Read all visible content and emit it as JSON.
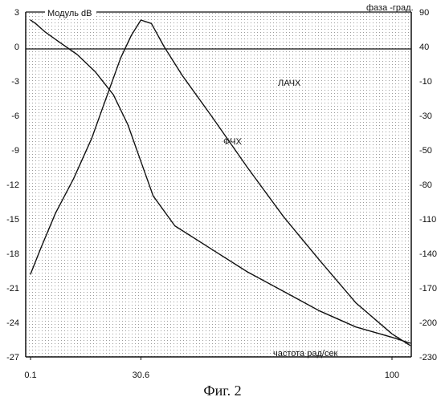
{
  "chart_data": {
    "type": "line",
    "title": "",
    "caption": "Фиг. 2",
    "left_axis": {
      "label": "Модуль dB",
      "ticks": [
        3,
        0,
        -3,
        -6,
        -9,
        -12,
        -15,
        -18,
        -21,
        -24,
        -27
      ],
      "tick_labels": [
        "3",
        "0",
        "-3",
        "-6",
        "-9",
        "-12",
        "-15",
        "-18",
        "-21",
        "-24",
        "-27"
      ],
      "ylim": [
        -27,
        3
      ]
    },
    "right_axis": {
      "label": "фаза -град.",
      "tick_labels": [
        "90",
        "40",
        "-10",
        "-30",
        "-50",
        "-80",
        "-110",
        "-140",
        "-170",
        "-200",
        "-230"
      ]
    },
    "x_axis": {
      "label": "частота рад/сек",
      "tick_labels": [
        "0.1",
        "30.6",
        "100"
      ]
    },
    "series": [
      {
        "name": "ЛАЧХ",
        "axis": "left",
        "points": [
          {
            "x": 0.1,
            "y": 2.3
          },
          {
            "x": 1.5,
            "y": 2.0
          },
          {
            "x": 4.0,
            "y": 1.3
          },
          {
            "x": 8.0,
            "y": 0.4
          },
          {
            "x": 13.0,
            "y": -0.7
          },
          {
            "x": 18.0,
            "y": -2.2
          },
          {
            "x": 23.0,
            "y": -4.2
          },
          {
            "x": 27.0,
            "y": -6.8
          },
          {
            "x": 30.6,
            "y": -10.0
          },
          {
            "x": 34.0,
            "y": -13.0
          },
          {
            "x": 40.0,
            "y": -15.6
          },
          {
            "x": 50.0,
            "y": -17.6
          },
          {
            "x": 60.0,
            "y": -19.6
          },
          {
            "x": 70.0,
            "y": -21.3
          },
          {
            "x": 80.0,
            "y": -23.0
          },
          {
            "x": 90.0,
            "y": -24.4
          },
          {
            "x": 100.0,
            "y": -25.3
          },
          {
            "x": 105.0,
            "y": -25.8
          }
        ]
      },
      {
        "name": "ФЧХ",
        "axis": "left",
        "points": [
          {
            "x": 0.1,
            "y": -19.8
          },
          {
            "x": 3.0,
            "y": -17.5
          },
          {
            "x": 7.0,
            "y": -14.5
          },
          {
            "x": 12.0,
            "y": -11.5
          },
          {
            "x": 17.0,
            "y": -8.0
          },
          {
            "x": 21.0,
            "y": -4.5
          },
          {
            "x": 25.0,
            "y": -1.0
          },
          {
            "x": 28.0,
            "y": 1.0
          },
          {
            "x": 30.6,
            "y": 2.3
          },
          {
            "x": 33.5,
            "y": 2.0
          },
          {
            "x": 37.0,
            "y": 0.0
          },
          {
            "x": 42.0,
            "y": -2.5
          },
          {
            "x": 50.0,
            "y": -6.0
          },
          {
            "x": 60.0,
            "y": -10.5
          },
          {
            "x": 70.0,
            "y": -14.8
          },
          {
            "x": 80.0,
            "y": -18.6
          },
          {
            "x": 90.0,
            "y": -22.3
          },
          {
            "x": 100.0,
            "y": -25.0
          },
          {
            "x": 105.0,
            "y": -26.0
          }
        ]
      }
    ],
    "reference_lines": [
      {
        "axis": "left",
        "y": 0
      },
      {
        "axis": "left",
        "y": 3
      }
    ],
    "grid": true,
    "colors": {
      "line": "#111111",
      "grid": "#9a9a9a"
    }
  }
}
